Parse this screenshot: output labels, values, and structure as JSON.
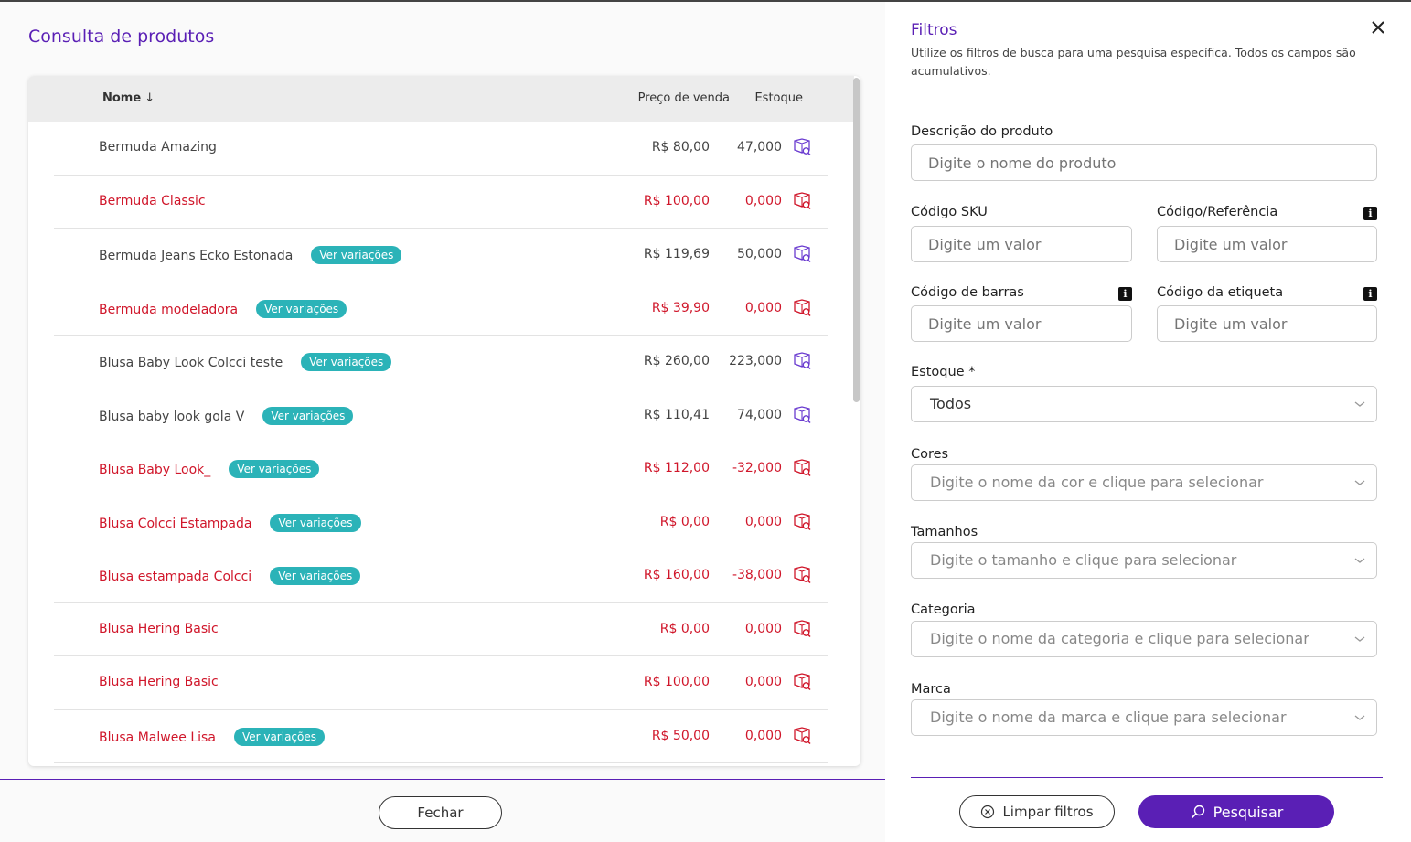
{
  "page": {
    "title": "Consulta de produtos",
    "close_label": "Fechar"
  },
  "table": {
    "headers": {
      "name": "Nome",
      "price": "Preço de venda",
      "stock": "Estoque"
    },
    "rows": [
      {
        "name": "Bermuda Amazing",
        "badge": "",
        "price": "R$ 80,00",
        "stock": "47,000",
        "status": "pos"
      },
      {
        "name": "Bermuda Classic",
        "badge": "",
        "price": "R$ 100,00",
        "stock": "0,000",
        "status": "neg"
      },
      {
        "name": "Bermuda Jeans Ecko Estonada",
        "badge": "Ver variações",
        "price": "R$ 119,69",
        "stock": "50,000",
        "status": "pos"
      },
      {
        "name": "Bermuda modeladora",
        "badge": "Ver variações",
        "price": "R$ 39,90",
        "stock": "0,000",
        "status": "neg"
      },
      {
        "name": "Blusa Baby Look Colcci teste",
        "badge": "Ver variações",
        "price": "R$ 260,00",
        "stock": "223,000",
        "status": "pos"
      },
      {
        "name": "Blusa baby look gola V",
        "badge": "Ver variações",
        "price": "R$ 110,41",
        "stock": "74,000",
        "status": "pos"
      },
      {
        "name": "Blusa Baby Look_",
        "badge": "Ver variações",
        "price": "R$ 112,00",
        "stock": "-32,000",
        "status": "neg"
      },
      {
        "name": "Blusa Colcci Estampada",
        "badge": "Ver variações",
        "price": "R$ 0,00",
        "stock": "0,000",
        "status": "neg"
      },
      {
        "name": "Blusa estampada Colcci",
        "badge": "Ver variações",
        "price": "R$ 160,00",
        "stock": "-38,000",
        "status": "neg"
      },
      {
        "name": "Blusa Hering Basic",
        "badge": "",
        "price": "R$ 0,00",
        "stock": "0,000",
        "status": "neg"
      },
      {
        "name": "Blusa Hering Basic",
        "badge": "",
        "price": "R$ 100,00",
        "stock": "0,000",
        "status": "neg"
      },
      {
        "name": "Blusa Malwee Lisa",
        "badge": "Ver variações",
        "price": "R$ 50,00",
        "stock": "0,000",
        "status": "neg"
      }
    ]
  },
  "filters": {
    "title": "Filtros",
    "description": "Utilize os filtros de busca para uma pesquisa específica. Todos os campos são acumulativos.",
    "descricao": {
      "label": "Descrição do produto",
      "placeholder": "Digite o nome do produto"
    },
    "sku": {
      "label": "Código SKU",
      "placeholder": "Digite um valor"
    },
    "referencia": {
      "label": "Código/Referência",
      "placeholder": "Digite um valor"
    },
    "barras": {
      "label": "Código de barras",
      "placeholder": "Digite um valor"
    },
    "etiqueta": {
      "label": "Código da etiqueta",
      "placeholder": "Digite um valor"
    },
    "estoque": {
      "label": "Estoque *",
      "value": "Todos"
    },
    "cores": {
      "label": "Cores",
      "placeholder": "Digite o nome da cor e clique para selecionar"
    },
    "tamanhos": {
      "label": "Tamanhos",
      "placeholder": "Digite o tamanho e clique para selecionar"
    },
    "categoria": {
      "label": "Categoria",
      "placeholder": "Digite o nome da categoria e clique para selecionar"
    },
    "marca": {
      "label": "Marca",
      "placeholder": "Digite o nome da marca e clique para selecionar"
    },
    "clear_label": "Limpar filtros",
    "search_label": "Pesquisar",
    "info_glyph": "i"
  },
  "colors": {
    "accent": "#5a1fb5",
    "badge": "#2bb3b8",
    "negative": "#d0162a",
    "positive_icon": "#6a3bd0"
  }
}
